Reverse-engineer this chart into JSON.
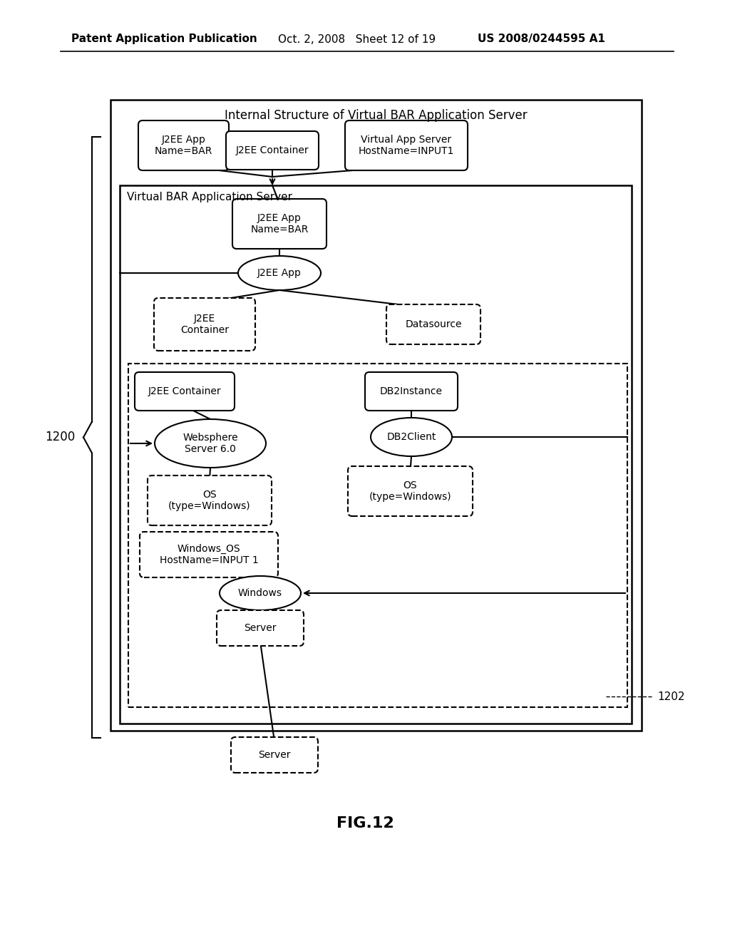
{
  "bg_color": "#ffffff",
  "header_left": "Patent Application Publication",
  "header_mid": "Oct. 2, 2008   Sheet 12 of 19",
  "header_right": "US 2008/0244595 A1",
  "footer_label": "FIG.12",
  "label_1200": "1200",
  "label_1202": "1202",
  "title_outer": "Internal Structure of Virtual BAR Application Server",
  "box_j2ee_app_name": "J2EE App\nName=BAR",
  "box_j2ee_container_top": "J2EE Container",
  "box_virtual_app_server": "Virtual App Server\nHostName=INPUT1",
  "label_virtual_bar": "Virtual BAR Application Server",
  "box_j2ee_app_name2": "J2EE App\nName=BAR",
  "oval_j2ee_app": "J2EE App",
  "box_j2ee_container_dashed": "J2EE\nContainer",
  "box_datasource_dashed": "Datasource",
  "box_j2ee_container_solid": "J2EE Container",
  "box_db2instance": "DB2Instance",
  "oval_websphere": "Websphere\nServer 6.0",
  "oval_db2client": "DB2Client",
  "box_os_left": "OS\n(type=Windows)",
  "box_os_right": "OS\n(type=Windows)",
  "box_windows_os": "Windows_OS\nHostName=INPUT 1",
  "oval_windows": "Windows",
  "box_server_inner": "Server",
  "box_server_outer": "Server"
}
